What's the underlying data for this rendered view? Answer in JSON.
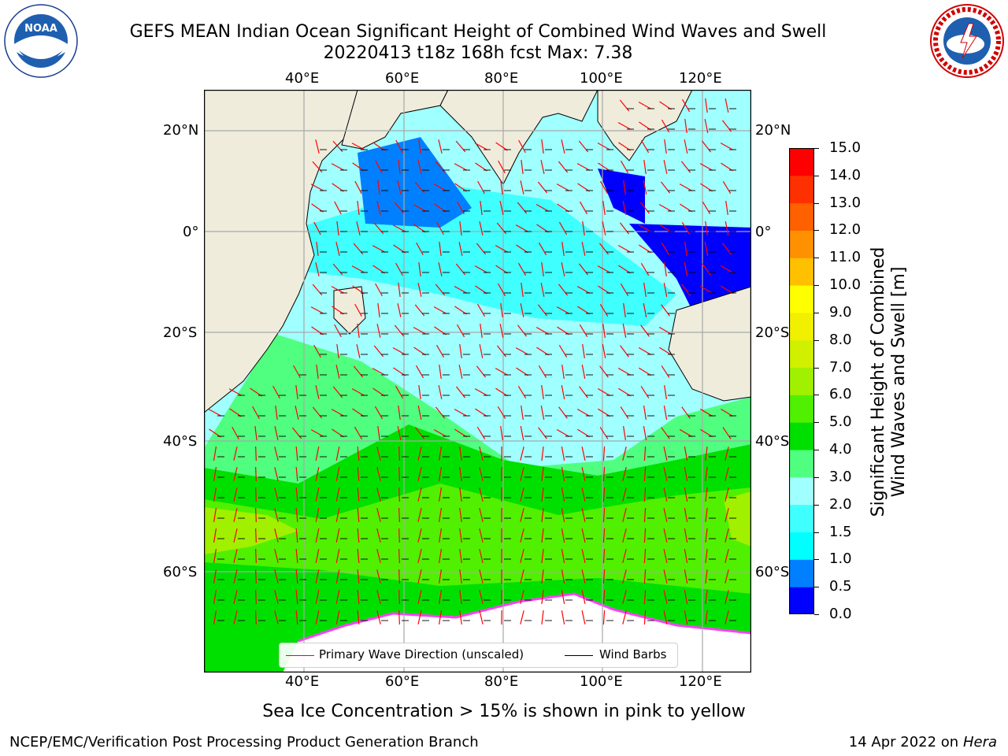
{
  "title": {
    "line1": "GEFS MEAN Indian Ocean Significant Height of Combined Wind Waves and Swell",
    "line2": "20220413 t18z 168h fcst   Max: 7.38"
  },
  "logos": {
    "left": {
      "text": "NOAA",
      "ring_text": "NATIONAL OCEANIC AND ATMOSPHERIC ADMINISTRATION",
      "icon": "noaa-logo"
    },
    "right": {
      "ring_text": "NATIONAL WEATHER SERVICE",
      "icon": "nws-logo"
    }
  },
  "map": {
    "lon_ticks": [
      "40°E",
      "60°E",
      "80°E",
      "100°E",
      "120°E"
    ],
    "lat_ticks": [
      "20°N",
      "0°",
      "20°S",
      "40°S",
      "60°S"
    ],
    "land_color": "#efecdc",
    "sea_ice_color": "#ffffff"
  },
  "colorbar": {
    "label_line1": "Significant Height of Combined",
    "label_line2": "Wind Waves and Swell [m]",
    "ticks": [
      "0.0",
      "0.5",
      "1.0",
      "1.5",
      "2.0",
      "3.0",
      "4.0",
      "5.0",
      "6.0",
      "7.0",
      "8.0",
      "9.0",
      "10.0",
      "11.0",
      "12.0",
      "13.0",
      "14.0",
      "15.0"
    ],
    "colors": [
      "#0000ff",
      "#0080ff",
      "#00ffff",
      "#40ffff",
      "#a0ffff",
      "#50ff80",
      "#00e000",
      "#50f000",
      "#a0f000",
      "#d0f000",
      "#f0f000",
      "#ffff00",
      "#ffc000",
      "#ff9000",
      "#ff6000",
      "#ff3000",
      "#ff0000"
    ]
  },
  "legend": {
    "primary_wave_label": "Primary Wave Direction (unscaled)",
    "primary_wave_color": "#ff0000",
    "wind_barbs_label": "Wind Barbs",
    "wind_barbs_color": "#000000"
  },
  "notes": {
    "ice": "Sea Ice Concentration > 15% is shown in pink to yellow"
  },
  "footer": {
    "left": "NCEP/EMC/Verification Post Processing Product Generation Branch",
    "date": "14 Apr 2022 on ",
    "machine": "Hera"
  }
}
